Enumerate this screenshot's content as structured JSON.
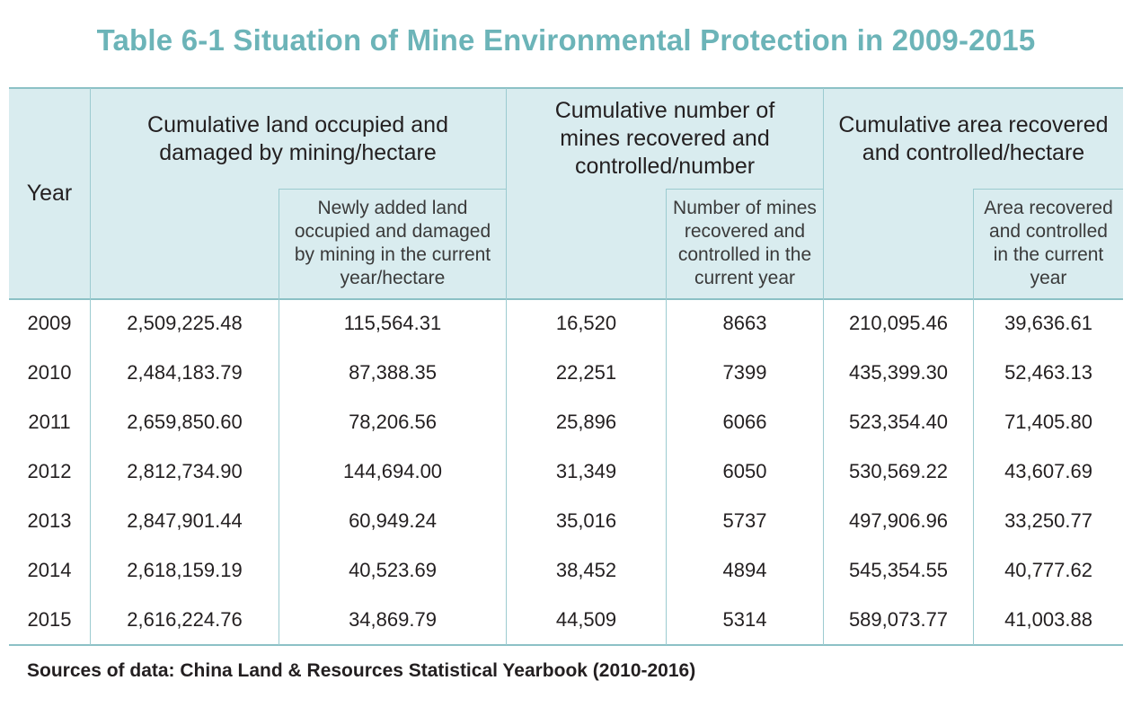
{
  "title": "Table 6-1 Situation of Mine Environmental Protection in 2009-2015",
  "headers": {
    "year": "Year",
    "land_damaged": "Cumulative land occupied and damaged by mining/hectare",
    "land_new": "Newly added land occupied and damaged by mining in the current year/hectare",
    "mines_recovered": "Cumulative number of mines recovered and controlled/number",
    "mines_current": "Number of mines recovered and controlled in the current year",
    "area_recovered": "Cumulative area recovered and controlled/hectare",
    "area_current": "Area recovered and controlled in the current year"
  },
  "rows": [
    [
      "2009",
      "2,509,225.48",
      "115,564.31",
      "16,520",
      "8663",
      "210,095.46",
      "39,636.61"
    ],
    [
      "2010",
      "2,484,183.79",
      "87,388.35",
      "22,251",
      "7399",
      "435,399.30",
      "52,463.13"
    ],
    [
      "2011",
      "2,659,850.60",
      "78,206.56",
      "25,896",
      "6066",
      "523,354.40",
      "71,405.80"
    ],
    [
      "2012",
      "2,812,734.90",
      "144,694.00",
      "31,349",
      "6050",
      "530,569.22",
      "43,607.69"
    ],
    [
      "2013",
      "2,847,901.44",
      "60,949.24",
      "35,016",
      "5737",
      "497,906.96",
      "33,250.77"
    ],
    [
      "2014",
      "2,618,159.19",
      "40,523.69",
      "38,452",
      "4894",
      "545,354.55",
      "40,777.62"
    ],
    [
      "2015",
      "2,616,224.76",
      "34,869.79",
      "44,509",
      "5314",
      "589,073.77",
      "41,003.88"
    ]
  ],
  "source": "Sources of data: China Land & Resources Statistical Yearbook (2010-2016)",
  "colors": {
    "title": "#6cb4b8",
    "header_bg": "#d9ecef",
    "rule": "#8cc1c6"
  }
}
